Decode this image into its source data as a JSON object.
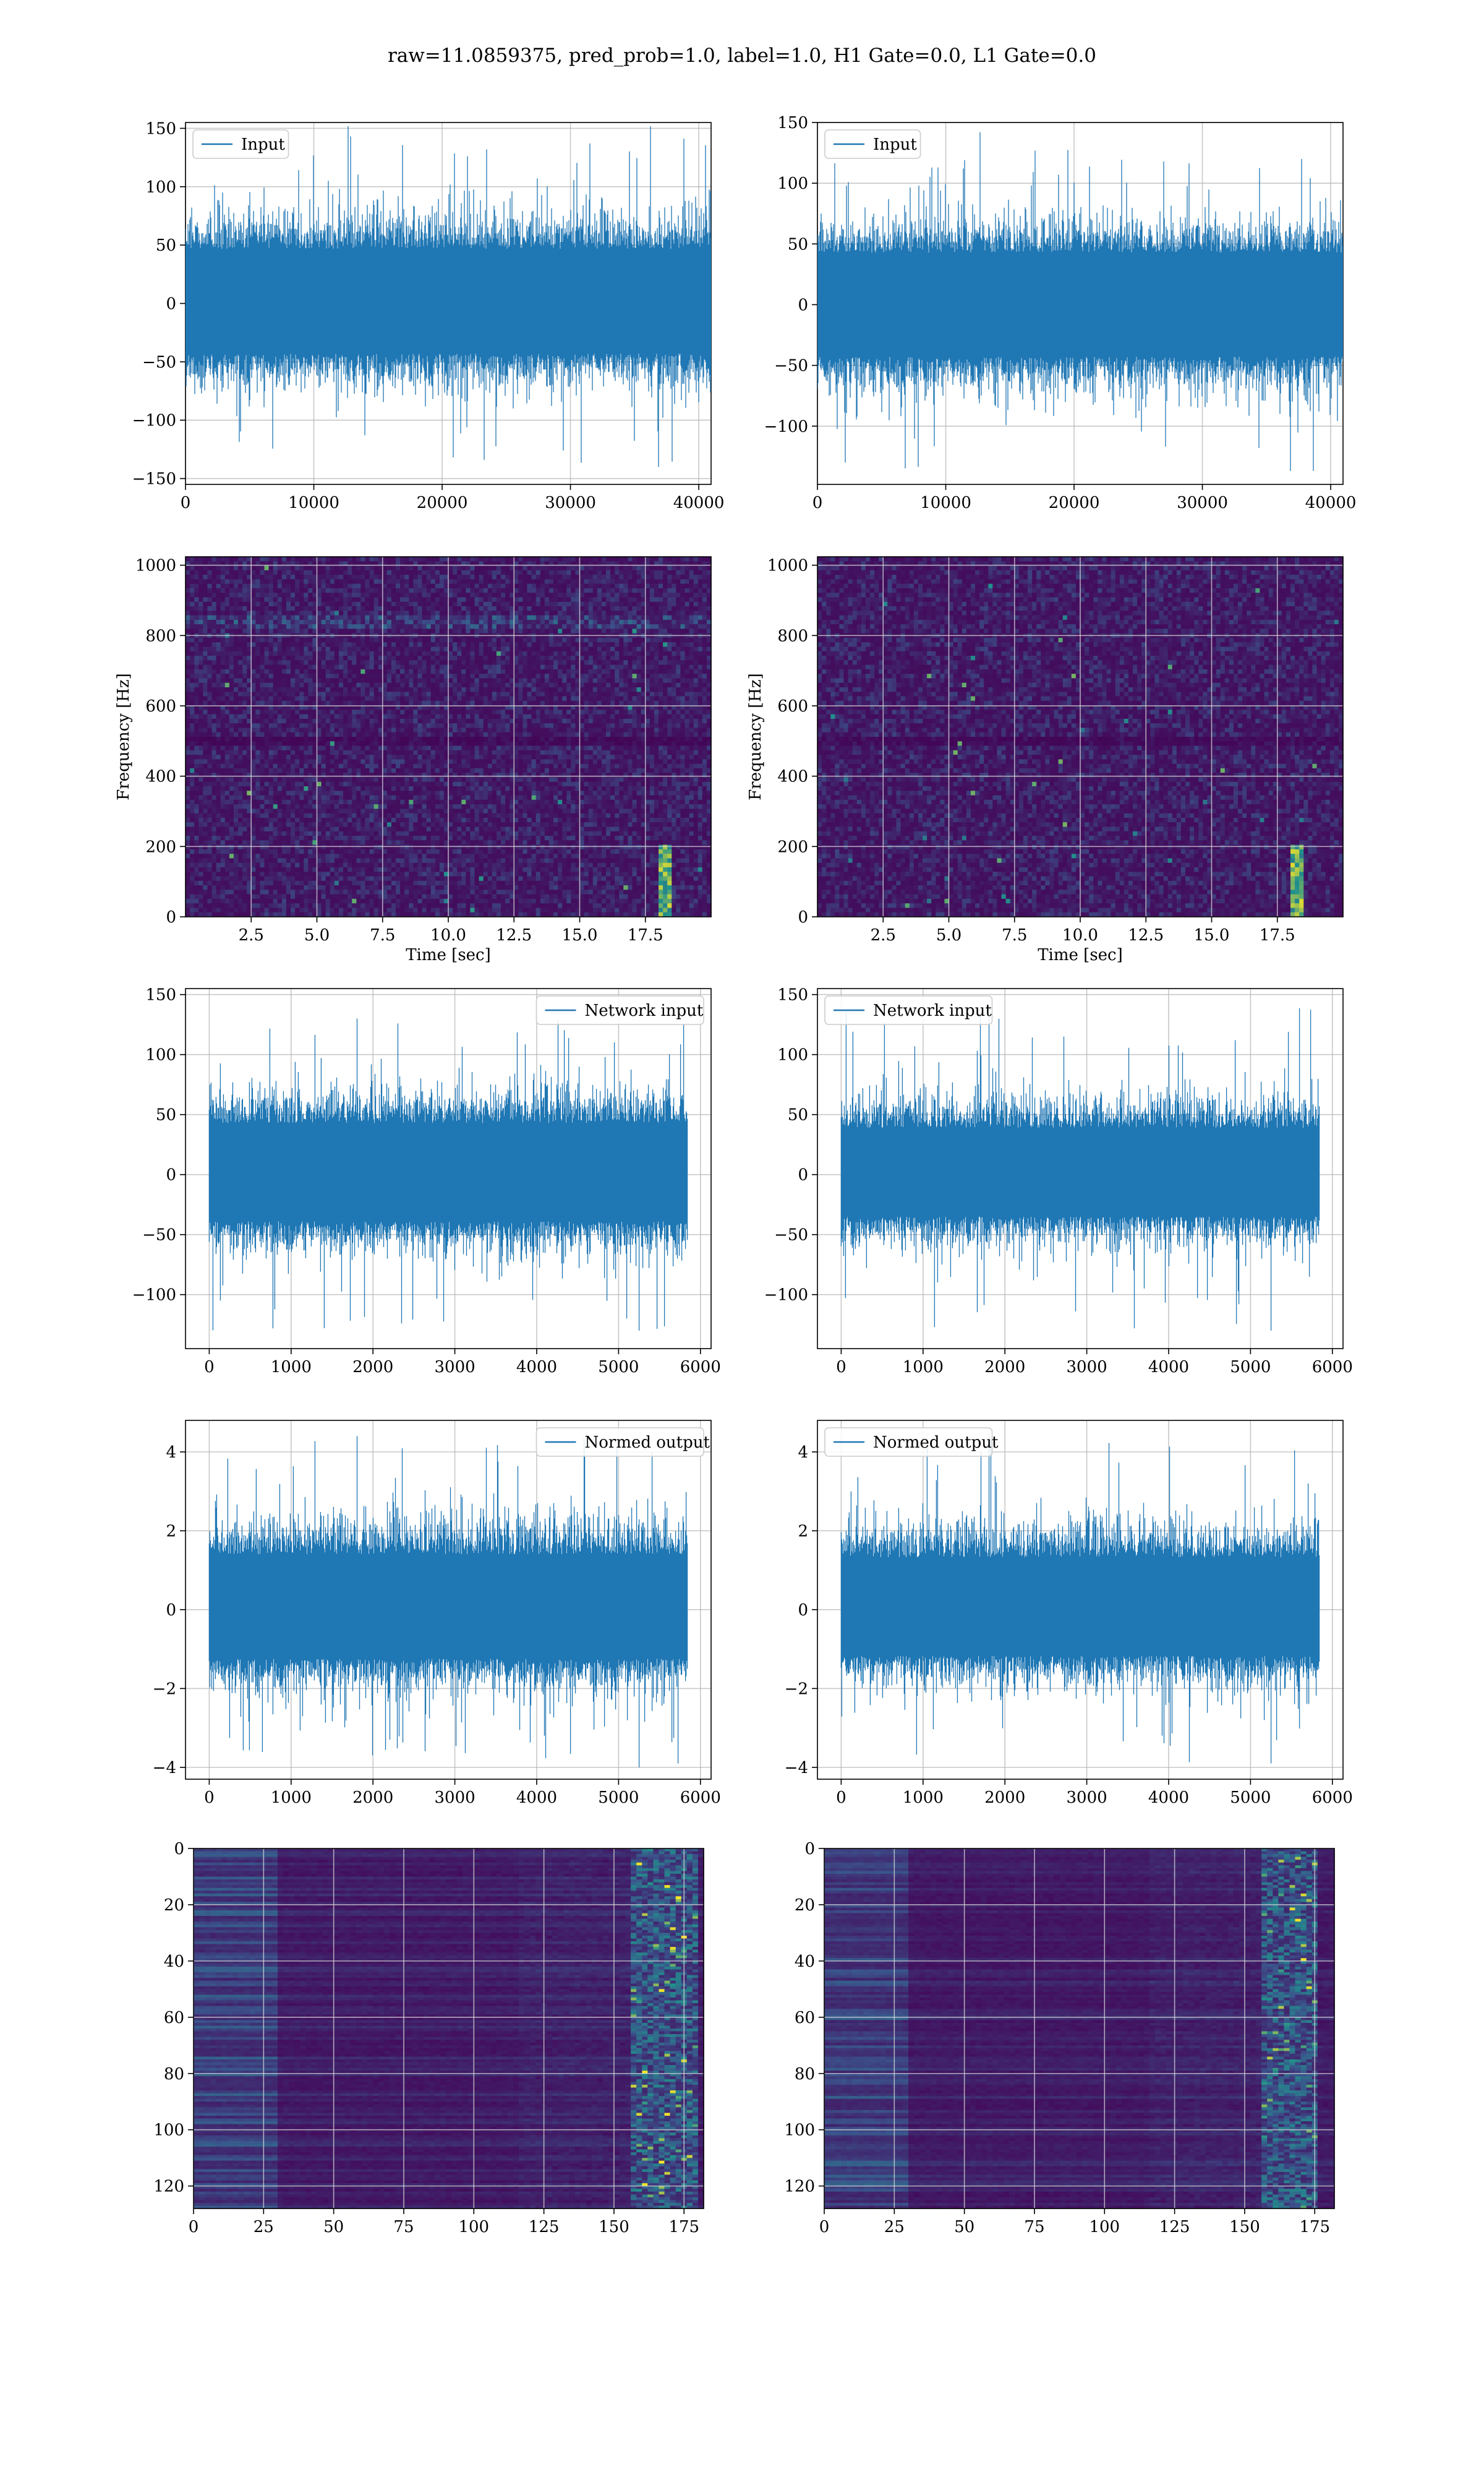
{
  "figure": {
    "title": "raw=11.0859375, pred_prob=1.0, label=1.0, H1 Gate=0.0, L1 Gate=0.0"
  },
  "colors": {
    "series": "#1f77b4",
    "grid": "#b0b0b0",
    "viridis_low": "#440154",
    "viridis_mid": "#21918c",
    "viridis_high": "#fde725"
  },
  "chart_data": [
    {
      "id": "row1-left",
      "type": "line",
      "series": [
        {
          "name": "Input"
        }
      ],
      "legend": "upper left",
      "xlim": [
        0,
        40960
      ],
      "ylim": [
        -155,
        155
      ],
      "xticks": [
        0,
        10000,
        20000,
        30000,
        40000
      ],
      "yticks": [
        -150,
        -100,
        -50,
        0,
        50,
        100,
        150
      ],
      "signal": {
        "n": 40960,
        "band": [
          -55,
          60
        ],
        "extremes": [
          -140,
          152
        ]
      },
      "grid": true
    },
    {
      "id": "row1-right",
      "type": "line",
      "series": [
        {
          "name": "Input"
        }
      ],
      "legend": "upper left",
      "xlim": [
        0,
        40960
      ],
      "ylim": [
        -148,
        150
      ],
      "xticks": [
        0,
        10000,
        20000,
        30000,
        40000
      ],
      "yticks": [
        -100,
        -50,
        0,
        50,
        100,
        150
      ],
      "signal": {
        "n": 40960,
        "band": [
          -55,
          55
        ],
        "extremes": [
          -137,
          142
        ]
      },
      "grid": true
    },
    {
      "id": "row2-left",
      "type": "heatmap",
      "xlabel": "Time [sec]",
      "ylabel": "Frequency [Hz]",
      "xlim": [
        0,
        20
      ],
      "ylim": [
        0,
        1024
      ],
      "xticks": [
        "2.5",
        "5.0",
        "7.5",
        "10.0",
        "12.5",
        "15.0",
        "17.5"
      ],
      "yticks": [
        0,
        200,
        400,
        600,
        800,
        1000
      ],
      "features": {
        "chirp_time_sec": 18.3,
        "lines_hz": [
          500,
          840
        ]
      },
      "grid": true
    },
    {
      "id": "row2-right",
      "type": "heatmap",
      "xlabel": "Time [sec]",
      "ylabel": "Frequency [Hz]",
      "xlim": [
        0,
        20
      ],
      "ylim": [
        0,
        1024
      ],
      "xticks": [
        "2.5",
        "5.0",
        "7.5",
        "10.0",
        "12.5",
        "15.0",
        "17.5"
      ],
      "yticks": [
        0,
        200,
        400,
        600,
        800,
        1000
      ],
      "features": {
        "chirp_time_sec": 18.3,
        "lines_hz": [
          500
        ]
      },
      "grid": true
    },
    {
      "id": "row3-left",
      "type": "line",
      "series": [
        {
          "name": "Network input"
        }
      ],
      "legend": "upper right",
      "xlim": [
        -290,
        6130
      ],
      "ylim": [
        -145,
        155
      ],
      "xticks": [
        0,
        1000,
        2000,
        3000,
        4000,
        5000,
        6000
      ],
      "yticks": [
        -100,
        -50,
        0,
        50,
        100,
        150
      ],
      "signal": {
        "n": 5840,
        "band": [
          -50,
          55
        ],
        "extremes": [
          -130,
          130
        ]
      },
      "grid": true
    },
    {
      "id": "row3-right",
      "type": "line",
      "series": [
        {
          "name": "Network input"
        }
      ],
      "legend": "upper left",
      "xlim": [
        -290,
        6130
      ],
      "ylim": [
        -145,
        155
      ],
      "xticks": [
        0,
        1000,
        2000,
        3000,
        4000,
        5000,
        6000
      ],
      "yticks": [
        -100,
        -50,
        0,
        50,
        100,
        150
      ],
      "signal": {
        "n": 5840,
        "band": [
          -45,
          50
        ],
        "extremes": [
          -130,
          140
        ]
      },
      "grid": true
    },
    {
      "id": "row4-left",
      "type": "line",
      "series": [
        {
          "name": "Normed output"
        }
      ],
      "legend": "upper right",
      "xlim": [
        -290,
        6130
      ],
      "ylim": [
        -4.3,
        4.8
      ],
      "xticks": [
        0,
        1000,
        2000,
        3000,
        4000,
        5000,
        6000
      ],
      "yticks": [
        -4,
        -2,
        0,
        2,
        4
      ],
      "signal": {
        "n": 5840,
        "band": [
          -1.6,
          1.8
        ],
        "extremes": [
          -4.0,
          4.4
        ]
      },
      "grid": true
    },
    {
      "id": "row4-right",
      "type": "line",
      "series": [
        {
          "name": "Normed output"
        }
      ],
      "legend": "upper left",
      "xlim": [
        -290,
        6130
      ],
      "ylim": [
        -4.3,
        4.8
      ],
      "xticks": [
        0,
        1000,
        2000,
        3000,
        4000,
        5000,
        6000
      ],
      "yticks": [
        -4,
        -2,
        0,
        2,
        4
      ],
      "signal": {
        "n": 5840,
        "band": [
          -1.5,
          1.7
        ],
        "extremes": [
          -3.9,
          4.4
        ]
      },
      "grid": true
    },
    {
      "id": "row5-left",
      "type": "heatmap",
      "xlim": [
        0,
        182
      ],
      "ylim": [
        128,
        0
      ],
      "xticks": [
        0,
        25,
        50,
        75,
        100,
        125,
        150,
        175
      ],
      "yticks": [
        0,
        20,
        40,
        60,
        80,
        100,
        120
      ],
      "features": {
        "bright_column_band": [
          155,
          178
        ]
      },
      "grid": true
    },
    {
      "id": "row5-right",
      "type": "heatmap",
      "xlim": [
        0,
        182
      ],
      "ylim": [
        128,
        0
      ],
      "xticks": [
        0,
        25,
        50,
        75,
        100,
        125,
        150,
        175
      ],
      "yticks": [
        0,
        20,
        40,
        60,
        80,
        100,
        120
      ],
      "features": {
        "bright_column_band": [
          155,
          175
        ]
      },
      "grid": true
    }
  ]
}
